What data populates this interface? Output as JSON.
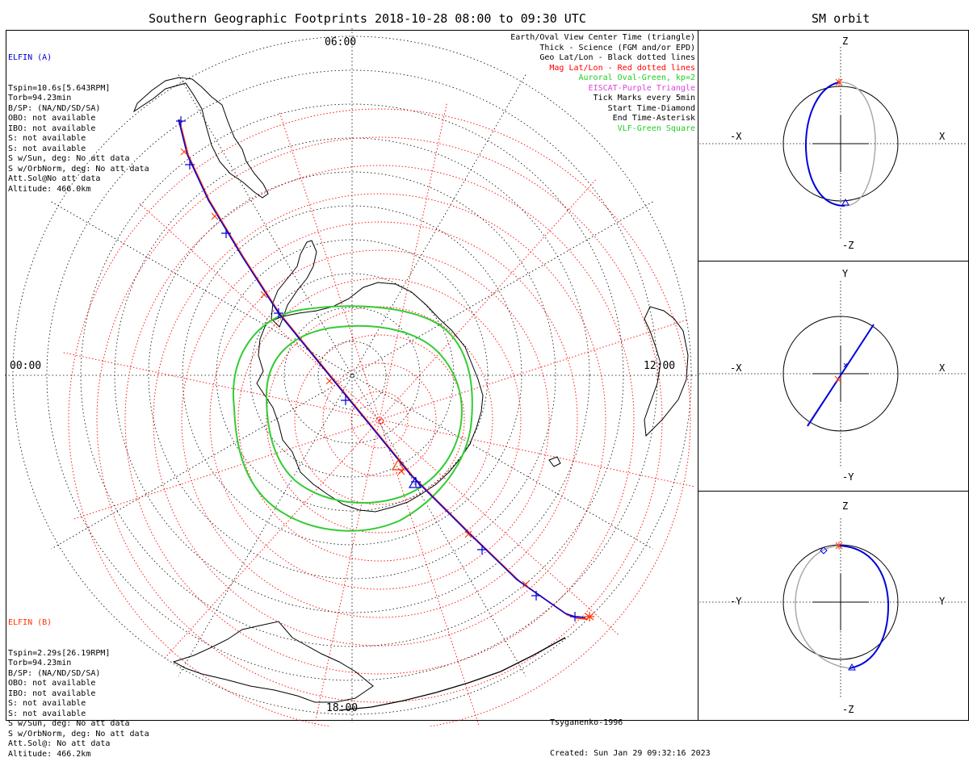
{
  "main_title": "Southern Geographic Footprints 2018-10-28 08:00 to 09:30 UTC",
  "side_title": "SM orbit",
  "elfin_a": {
    "name": "ELFIN (A)",
    "lines": [
      "Tspin=10.6s[5.643RPM]",
      "Torb=94.23min",
      "B/SP: (NA/ND/SD/SA)",
      "OBO: not available",
      "IBO: not available",
      "S: not available",
      "S: not available",
      "S w/Sun, deg: No att data",
      "S w/OrbNorm, deg: No att data",
      "Att.Sol@No att data",
      "Altitude: 466.0km"
    ],
    "color": "#0000cc"
  },
  "elfin_b": {
    "name": "ELFIN (B)",
    "lines": [
      "Tspin=2.29s[26.19RPM]",
      "Torb=94.23min",
      "B/SP: (NA/ND/SD/SA)",
      "OBO: not available",
      "IBO: not available",
      "S: not available",
      "S: not available",
      "S w/Sun, deg: No att data",
      "S w/OrbNorm, deg: No att data",
      "Att.Sol@: No att data",
      "Altitude: 466.2km"
    ],
    "color": "#ff3300"
  },
  "legend": [
    {
      "text": "Earth/Oval View Center Time (triangle)",
      "color": "#000000"
    },
    {
      "text": "Thick - Science (FGM and/or EPD)",
      "color": "#000000"
    },
    {
      "text": "Geo Lat/Lon - Black dotted lines",
      "color": "#000000"
    },
    {
      "text": "Mag Lat/Lon - Red dotted lines",
      "color": "#ff0000"
    },
    {
      "text": "Auroral Oval-Green, kp=2",
      "color": "#22cc22"
    },
    {
      "text": "EISCAT-Purple Triangle",
      "color": "#dd44dd"
    },
    {
      "text": "Tick Marks every 5min",
      "color": "#000000"
    },
    {
      "text": "Start Time-Diamond",
      "color": "#000000"
    },
    {
      "text": "End Time-Asterisk",
      "color": "#000000"
    },
    {
      "text": "VLF-Green Square",
      "color": "#22cc22"
    }
  ],
  "hours": {
    "top": "06:00",
    "left": "00:00",
    "right": "12:00",
    "bottom": "18:00"
  },
  "credit": {
    "model": "Tsyganenko-1996",
    "created": "Created: Sun Jan 29 09:32:16 2023"
  },
  "panels": [
    {
      "top": "Z",
      "bottom": "-Z",
      "left": "-X",
      "right": "X"
    },
    {
      "top": "Y",
      "bottom": "-Y",
      "left": "-X",
      "right": "X"
    },
    {
      "top": "Z",
      "bottom": "-Z",
      "left": "-Y",
      "right": "Y"
    }
  ],
  "colors": {
    "mag_grid": "#ff0000",
    "geo_grid": "#000000",
    "oval": "#33cc33",
    "track_a": "#0000dd",
    "track_b": "#ff3300"
  }
}
